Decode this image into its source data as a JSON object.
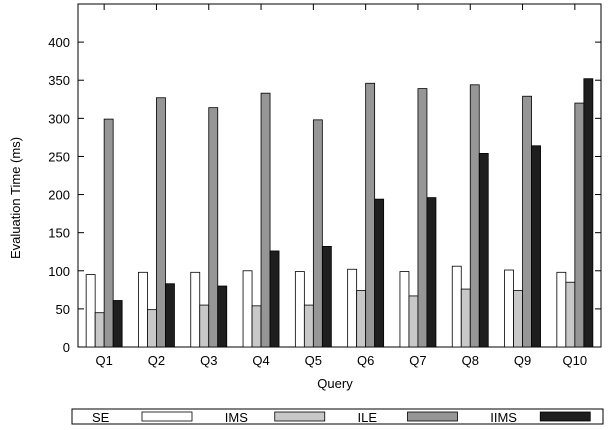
{
  "chart_data": {
    "type": "bar",
    "title": "",
    "xlabel": "Query",
    "ylabel": "Evaluation Time (ms)",
    "ylim": [
      0,
      450
    ],
    "yticks": [
      0,
      50,
      100,
      150,
      200,
      250,
      300,
      350,
      400
    ],
    "categories": [
      "Q1",
      "Q2",
      "Q3",
      "Q4",
      "Q5",
      "Q6",
      "Q7",
      "Q8",
      "Q9",
      "Q10"
    ],
    "grid": false,
    "legend_position": "bottom",
    "series": [
      {
        "name": "SE",
        "color": "#ffffff",
        "values": [
          95,
          98,
          98,
          100,
          99,
          102,
          99,
          106,
          101,
          98
        ]
      },
      {
        "name": "IMS",
        "color": "#c8c8c8",
        "values": [
          45,
          49,
          55,
          54,
          55,
          74,
          67,
          76,
          74,
          85
        ]
      },
      {
        "name": "ILE",
        "color": "#969696",
        "values": [
          299,
          327,
          314,
          333,
          298,
          346,
          339,
          344,
          329,
          320
        ]
      },
      {
        "name": "IIMS",
        "color": "#1e1e1e",
        "values": [
          61,
          83,
          80,
          126,
          132,
          194,
          196,
          254,
          264,
          352
        ]
      }
    ]
  }
}
